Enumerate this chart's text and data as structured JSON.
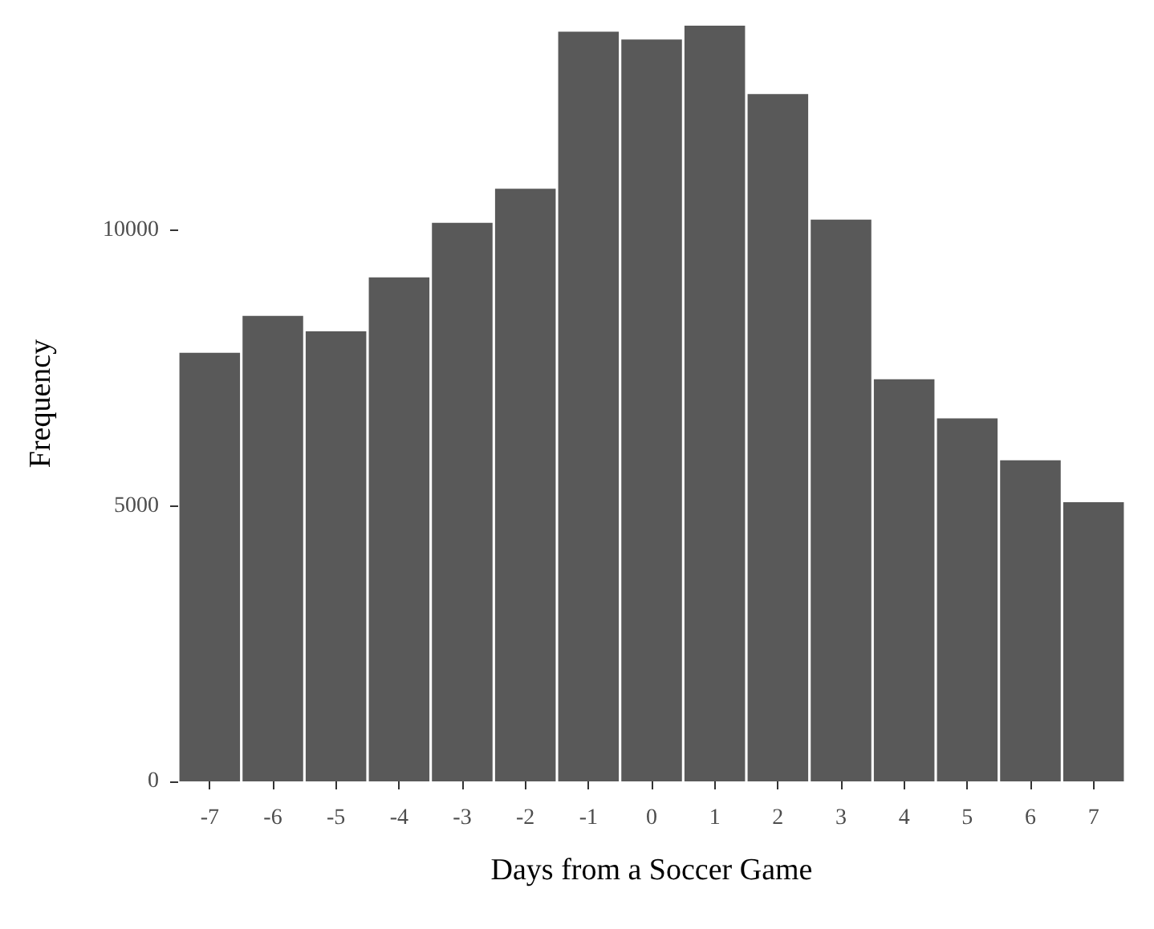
{
  "chart_data": {
    "type": "bar",
    "xlabel": "Days from a Soccer Game",
    "ylabel": "Frequency",
    "categories": [
      "-7",
      "-6",
      "-5",
      "-4",
      "-3",
      "-2",
      "-1",
      "0",
      "1",
      "2",
      "3",
      "4",
      "5",
      "6",
      "7"
    ],
    "values": [
      7780,
      8450,
      8170,
      9150,
      10140,
      10760,
      13610,
      13470,
      13720,
      12480,
      10200,
      7300,
      6590,
      5830,
      5070
    ],
    "color": "#595959",
    "ylim": [
      0,
      13720
    ],
    "yticks": [
      0,
      5000,
      10000
    ],
    "grid": false
  }
}
